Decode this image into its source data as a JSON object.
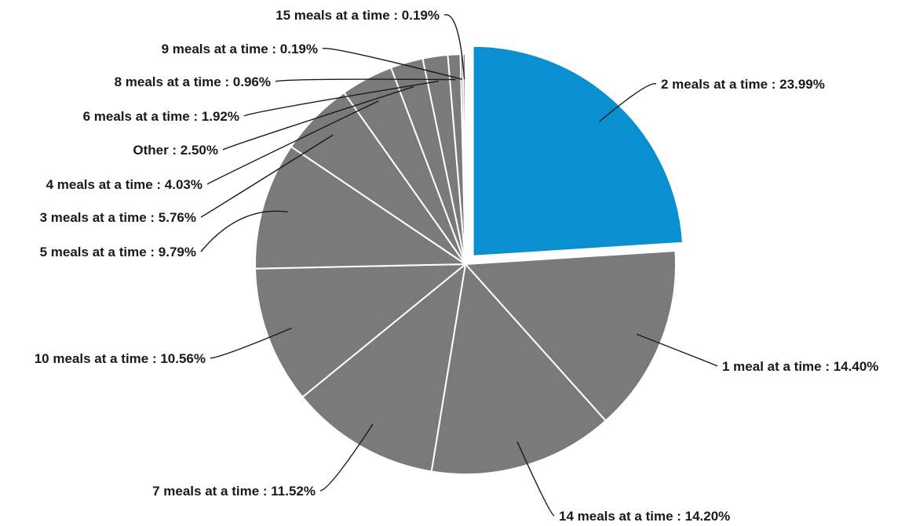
{
  "chart_data": {
    "type": "pie",
    "title": "",
    "label_separator": " : ",
    "slices": [
      {
        "label": "2 meals at a time",
        "value": 23.99,
        "display": "23.99%",
        "color": "#0a8fd1",
        "exploded": true
      },
      {
        "label": "1 meal at a time",
        "value": 14.4,
        "display": "14.40%",
        "color": "#7a7a7a"
      },
      {
        "label": "14 meals at a time",
        "value": 14.2,
        "display": "14.20%",
        "color": "#7a7a7a"
      },
      {
        "label": "7 meals at a time",
        "value": 11.52,
        "display": "11.52%",
        "color": "#7a7a7a"
      },
      {
        "label": "10 meals at a time",
        "value": 10.56,
        "display": "10.56%",
        "color": "#7a7a7a"
      },
      {
        "label": "5 meals at a time",
        "value": 9.79,
        "display": "9.79%",
        "color": "#7a7a7a"
      },
      {
        "label": "3 meals at a time",
        "value": 5.76,
        "display": "5.76%",
        "color": "#7a7a7a"
      },
      {
        "label": "4 meals at a time",
        "value": 4.03,
        "display": "4.03%",
        "color": "#7a7a7a"
      },
      {
        "label": "Other",
        "value": 2.5,
        "display": "2.50%",
        "color": "#7a7a7a"
      },
      {
        "label": "6 meals at a time",
        "value": 1.92,
        "display": "1.92%",
        "color": "#7a7a7a"
      },
      {
        "label": "8 meals at a time",
        "value": 0.96,
        "display": "0.96%",
        "color": "#7a7a7a"
      },
      {
        "label": "9 meals at a time",
        "value": 0.19,
        "display": "0.19%",
        "color": "#7a7a7a"
      },
      {
        "label": "15 meals at a time",
        "value": 0.19,
        "display": "0.19%",
        "color": "#7a7a7a"
      }
    ]
  }
}
